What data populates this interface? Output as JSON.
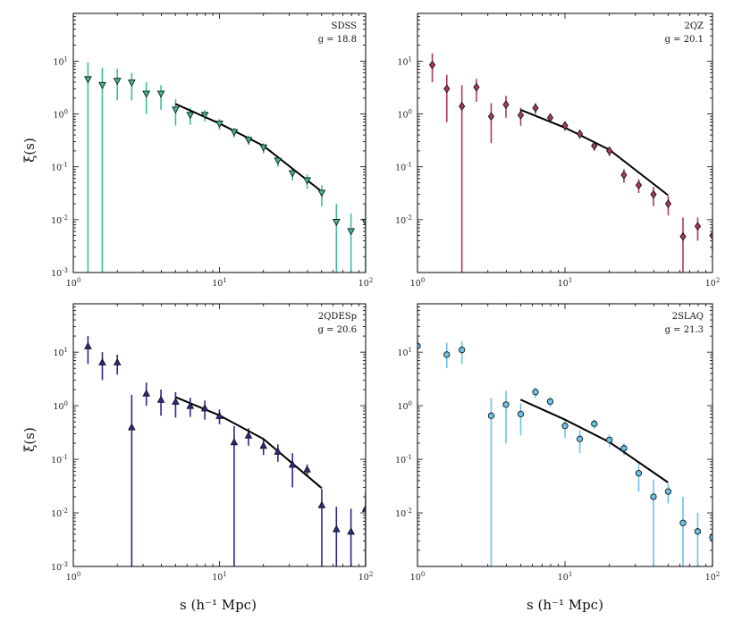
{
  "figure": {
    "xlabel": "s (h⁻¹ Mpc)",
    "ylabel": "ξ(s)"
  },
  "chart_data": [
    {
      "type": "scatter",
      "panel": "top-left",
      "name": "SDSS",
      "mag_label": "g = 18.8",
      "color": "#3dbf9b",
      "marker": "triangle-down",
      "x_scale": "log",
      "y_scale": "log",
      "xlim": [
        1,
        100
      ],
      "ylim": [
        0.001,
        80
      ],
      "xticks": [
        "10^0",
        "10^1",
        "10^2"
      ],
      "yticks": [
        "10^-3",
        "10^-2",
        "10^-1",
        "10^0",
        "10^1"
      ],
      "points": [
        {
          "x": 1.26,
          "y": 4.5,
          "lo": 0.0001,
          "hi": 9.5
        },
        {
          "x": 1.58,
          "y": 3.5,
          "lo": 0.0001,
          "hi": 7.5
        },
        {
          "x": 2.0,
          "y": 4.2,
          "lo": 1.8,
          "hi": 7.2
        },
        {
          "x": 2.51,
          "y": 3.9,
          "lo": 1.8,
          "hi": 6.0
        },
        {
          "x": 3.16,
          "y": 2.4,
          "lo": 1.0,
          "hi": 4.0
        },
        {
          "x": 3.98,
          "y": 2.4,
          "lo": 1.2,
          "hi": 3.5
        },
        {
          "x": 5.01,
          "y": 1.2,
          "lo": 0.6,
          "hi": 1.9
        },
        {
          "x": 6.31,
          "y": 0.95,
          "lo": 0.62,
          "hi": 1.3
        },
        {
          "x": 7.94,
          "y": 0.95,
          "lo": 0.72,
          "hi": 1.2
        },
        {
          "x": 10.0,
          "y": 0.65,
          "lo": 0.5,
          "hi": 0.8
        },
        {
          "x": 12.6,
          "y": 0.45,
          "lo": 0.36,
          "hi": 0.55
        },
        {
          "x": 15.8,
          "y": 0.32,
          "lo": 0.26,
          "hi": 0.39
        },
        {
          "x": 20.0,
          "y": 0.23,
          "lo": 0.18,
          "hi": 0.28
        },
        {
          "x": 25.1,
          "y": 0.13,
          "lo": 0.1,
          "hi": 0.16
        },
        {
          "x": 31.6,
          "y": 0.075,
          "lo": 0.055,
          "hi": 0.095
        },
        {
          "x": 39.8,
          "y": 0.055,
          "lo": 0.038,
          "hi": 0.072
        },
        {
          "x": 50.1,
          "y": 0.032,
          "lo": 0.018,
          "hi": 0.045
        },
        {
          "x": 63.1,
          "y": 0.009,
          "lo": 0.0001,
          "hi": 0.02
        },
        {
          "x": 79.4,
          "y": 0.006,
          "lo": 0.0001,
          "hi": 0.013
        },
        {
          "x": 100.0,
          "y": 0.009,
          "lo": 0.0001,
          "hi": 0.02
        }
      ],
      "model": [
        [
          5.0,
          1.55
        ],
        [
          10.0,
          0.66
        ],
        [
          20.0,
          0.25
        ],
        [
          50.0,
          0.034
        ]
      ]
    },
    {
      "type": "scatter",
      "panel": "top-right",
      "name": "2QZ",
      "mag_label": "g = 20.1",
      "color": "#b03a5a",
      "marker": "diamond",
      "x_scale": "log",
      "y_scale": "log",
      "xlim": [
        1,
        100
      ],
      "ylim": [
        0.001,
        80
      ],
      "xticks": [
        "10^0",
        "10^1",
        "10^2"
      ],
      "yticks": [
        "10^-2",
        "10^-1",
        "10^0",
        "10^1"
      ],
      "points": [
        {
          "x": 1.26,
          "y": 8.5,
          "lo": 4.0,
          "hi": 14.0
        },
        {
          "x": 1.58,
          "y": 3.0,
          "lo": 0.7,
          "hi": 5.5
        },
        {
          "x": 2.0,
          "y": 1.4,
          "lo": 0.0001,
          "hi": 3.5
        },
        {
          "x": 2.51,
          "y": 3.2,
          "lo": 1.7,
          "hi": 4.6
        },
        {
          "x": 3.16,
          "y": 0.9,
          "lo": 0.28,
          "hi": 1.6
        },
        {
          "x": 3.98,
          "y": 1.5,
          "lo": 0.85,
          "hi": 2.2
        },
        {
          "x": 5.01,
          "y": 0.95,
          "lo": 0.6,
          "hi": 1.3
        },
        {
          "x": 6.31,
          "y": 1.3,
          "lo": 1.0,
          "hi": 1.6
        },
        {
          "x": 7.94,
          "y": 0.85,
          "lo": 0.68,
          "hi": 1.03
        },
        {
          "x": 10.0,
          "y": 0.6,
          "lo": 0.48,
          "hi": 0.72
        },
        {
          "x": 12.6,
          "y": 0.42,
          "lo": 0.34,
          "hi": 0.5
        },
        {
          "x": 15.8,
          "y": 0.25,
          "lo": 0.2,
          "hi": 0.3
        },
        {
          "x": 20.0,
          "y": 0.2,
          "lo": 0.16,
          "hi": 0.24
        },
        {
          "x": 25.1,
          "y": 0.07,
          "lo": 0.05,
          "hi": 0.09
        },
        {
          "x": 31.6,
          "y": 0.045,
          "lo": 0.032,
          "hi": 0.058
        },
        {
          "x": 39.8,
          "y": 0.03,
          "lo": 0.018,
          "hi": 0.042
        },
        {
          "x": 50.1,
          "y": 0.02,
          "lo": 0.012,
          "hi": 0.028
        },
        {
          "x": 63.1,
          "y": 0.0048,
          "lo": 0.0001,
          "hi": 0.011
        },
        {
          "x": 79.4,
          "y": 0.0075,
          "lo": 0.004,
          "hi": 0.011
        },
        {
          "x": 100.0,
          "y": 0.005,
          "lo": 0.0025,
          "hi": 0.0075
        }
      ],
      "model": [
        [
          5.0,
          1.2
        ],
        [
          10.0,
          0.55
        ],
        [
          20.0,
          0.21
        ],
        [
          50.0,
          0.029
        ]
      ]
    },
    {
      "type": "scatter",
      "panel": "bottom-left",
      "name": "2QDESp",
      "mag_label": "g = 20.6",
      "color": "#2a2a8e",
      "marker": "triangle-up",
      "x_scale": "log",
      "y_scale": "log",
      "xlim": [
        1,
        100
      ],
      "ylim": [
        0.001,
        80
      ],
      "xticks": [
        "10^0",
        "10^1",
        "10^2"
      ],
      "yticks": [
        "10^-3",
        "10^-2",
        "10^-1",
        "10^0",
        "10^1"
      ],
      "points": [
        {
          "x": 1.26,
          "y": 13.0,
          "lo": 6.0,
          "hi": 20.0
        },
        {
          "x": 1.58,
          "y": 6.5,
          "lo": 3.0,
          "hi": 10.0
        },
        {
          "x": 2.0,
          "y": 6.5,
          "lo": 3.8,
          "hi": 9.0
        },
        {
          "x": 2.51,
          "y": 0.4,
          "lo": 0.0001,
          "hi": 1.6
        },
        {
          "x": 3.16,
          "y": 1.7,
          "lo": 1.0,
          "hi": 2.7
        },
        {
          "x": 3.98,
          "y": 1.3,
          "lo": 0.65,
          "hi": 2.0
        },
        {
          "x": 5.01,
          "y": 1.2,
          "lo": 0.6,
          "hi": 1.8
        },
        {
          "x": 6.31,
          "y": 1.0,
          "lo": 0.62,
          "hi": 1.4
        },
        {
          "x": 7.94,
          "y": 0.9,
          "lo": 0.55,
          "hi": 1.25
        },
        {
          "x": 10.0,
          "y": 0.65,
          "lo": 0.45,
          "hi": 0.85
        },
        {
          "x": 12.6,
          "y": 0.21,
          "lo": 0.0001,
          "hi": 0.42
        },
        {
          "x": 15.8,
          "y": 0.28,
          "lo": 0.18,
          "hi": 0.38
        },
        {
          "x": 20.0,
          "y": 0.18,
          "lo": 0.12,
          "hi": 0.24
        },
        {
          "x": 25.1,
          "y": 0.14,
          "lo": 0.09,
          "hi": 0.19
        },
        {
          "x": 31.6,
          "y": 0.08,
          "lo": 0.03,
          "hi": 0.13
        },
        {
          "x": 39.8,
          "y": 0.065,
          "lo": 0.05,
          "hi": 0.08
        },
        {
          "x": 50.1,
          "y": 0.014,
          "lo": 0.0001,
          "hi": 0.028
        },
        {
          "x": 63.1,
          "y": 0.005,
          "lo": 0.0001,
          "hi": 0.013
        },
        {
          "x": 79.4,
          "y": 0.0045,
          "lo": 0.0001,
          "hi": 0.012
        },
        {
          "x": 100.0,
          "y": 0.012,
          "lo": 0.0001,
          "hi": 0.025
        }
      ],
      "model": [
        [
          5.0,
          1.45
        ],
        [
          10.0,
          0.66
        ],
        [
          20.0,
          0.24
        ],
        [
          50.0,
          0.029
        ]
      ]
    },
    {
      "type": "scatter",
      "panel": "bottom-right",
      "name": "2SLAQ",
      "mag_label": "g = 21.3",
      "color": "#6ac3e8",
      "marker": "circle",
      "x_scale": "log",
      "y_scale": "log",
      "xlim": [
        1,
        100
      ],
      "ylim": [
        0.001,
        80
      ],
      "xticks": [
        "10^0",
        "10^1",
        "10^2"
      ],
      "yticks": [
        "10^-2",
        "10^-1",
        "10^0",
        "10^1"
      ],
      "points": [
        {
          "x": 1.0,
          "y": 13.0,
          "lo": 8.0,
          "hi": 18.0
        },
        {
          "x": 1.58,
          "y": 9.0,
          "lo": 5.0,
          "hi": 15.0
        },
        {
          "x": 2.0,
          "y": 11.0,
          "lo": 6.0,
          "hi": 16.0
        },
        {
          "x": 3.16,
          "y": 0.65,
          "lo": 0.0001,
          "hi": 1.4
        },
        {
          "x": 3.98,
          "y": 1.05,
          "lo": 0.2,
          "hi": 1.9
        },
        {
          "x": 5.01,
          "y": 0.7,
          "lo": 0.28,
          "hi": 1.1
        },
        {
          "x": 6.31,
          "y": 1.8,
          "lo": 1.4,
          "hi": 2.2
        },
        {
          "x": 7.94,
          "y": 1.2,
          "lo": 0.95,
          "hi": 1.45
        },
        {
          "x": 10.0,
          "y": 0.42,
          "lo": 0.25,
          "hi": 0.58
        },
        {
          "x": 12.6,
          "y": 0.24,
          "lo": 0.13,
          "hi": 0.35
        },
        {
          "x": 15.8,
          "y": 0.46,
          "lo": 0.37,
          "hi": 0.55
        },
        {
          "x": 20.0,
          "y": 0.23,
          "lo": 0.17,
          "hi": 0.29
        },
        {
          "x": 25.1,
          "y": 0.16,
          "lo": 0.12,
          "hi": 0.2
        },
        {
          "x": 31.6,
          "y": 0.055,
          "lo": 0.025,
          "hi": 0.085
        },
        {
          "x": 39.8,
          "y": 0.02,
          "lo": 0.0001,
          "hi": 0.042
        },
        {
          "x": 50.1,
          "y": 0.025,
          "lo": 0.015,
          "hi": 0.035
        },
        {
          "x": 63.1,
          "y": 0.0065,
          "lo": 0.0001,
          "hi": 0.02
        },
        {
          "x": 79.4,
          "y": 0.0045,
          "lo": 0.0001,
          "hi": 0.01
        },
        {
          "x": 100.0,
          "y": 0.0035,
          "lo": 0.0001,
          "hi": 0.008
        }
      ],
      "model": [
        [
          5.0,
          1.3
        ],
        [
          10.0,
          0.55
        ],
        [
          20.0,
          0.21
        ],
        [
          50.0,
          0.037
        ]
      ]
    }
  ]
}
